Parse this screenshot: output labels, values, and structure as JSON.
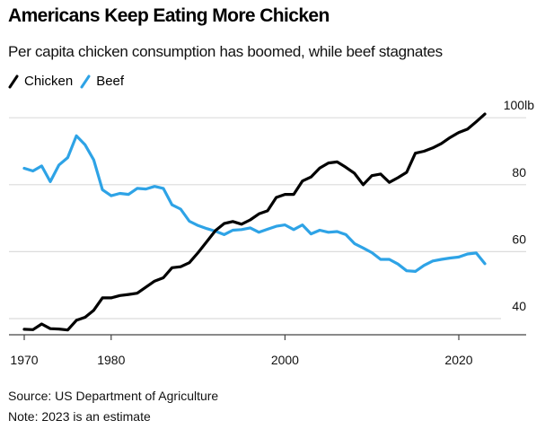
{
  "header": {
    "title": "Americans Keep Eating More Chicken",
    "subtitle": "Per capita chicken consumption has boomed, while beef stagnates"
  },
  "legend": [
    {
      "label": "Chicken",
      "color": "#000000"
    },
    {
      "label": "Beef",
      "color": "#2ea3e6"
    }
  ],
  "footer": {
    "source": "Source: US Department of Agriculture",
    "note": "Note: 2023 is an estimate"
  },
  "chart_data": {
    "type": "line",
    "title": "Americans Keep Eating More Chicken",
    "subtitle": "Per capita chicken consumption has boomed, while beef stagnates",
    "xlabel": "",
    "ylabel": "",
    "y_unit": "lb",
    "xlim": [
      1969,
      2025
    ],
    "ylim": [
      35,
      103
    ],
    "x_ticks": [
      1970,
      1980,
      2000,
      2020
    ],
    "x_tick_labels": [
      "1970",
      "1980",
      "2000",
      "2020"
    ],
    "y_ticks": [
      40,
      60,
      80,
      100
    ],
    "y_tick_labels": [
      "40",
      "60",
      "80",
      "100lb"
    ],
    "grid": true,
    "legend_position": "top-left",
    "x": [
      1970,
      1971,
      1972,
      1973,
      1974,
      1975,
      1976,
      1977,
      1978,
      1979,
      1980,
      1981,
      1982,
      1983,
      1984,
      1985,
      1986,
      1987,
      1988,
      1989,
      1990,
      1991,
      1992,
      1993,
      1994,
      1995,
      1996,
      1997,
      1998,
      1999,
      2000,
      2001,
      2002,
      2003,
      2004,
      2005,
      2006,
      2007,
      2008,
      2009,
      2010,
      2011,
      2012,
      2013,
      2014,
      2015,
      2016,
      2017,
      2018,
      2019,
      2020,
      2021,
      2022,
      2023
    ],
    "series": [
      {
        "name": "Chicken",
        "color": "#000000",
        "values": [
          36.8,
          36.7,
          38.4,
          37.0,
          36.9,
          36.6,
          39.5,
          40.4,
          42.5,
          46.2,
          46.2,
          46.9,
          47.2,
          47.6,
          49.4,
          51.2,
          52.2,
          55.2,
          55.5,
          56.7,
          59.7,
          63.0,
          66.3,
          68.4,
          69.0,
          68.2,
          69.5,
          71.3,
          72.2,
          76.2,
          77.1,
          77.1,
          81.1,
          82.3,
          85.0,
          86.5,
          86.8,
          85.2,
          83.4,
          80.0,
          82.7,
          83.2,
          80.7,
          82.1,
          83.7,
          89.4,
          90.0,
          91.0,
          92.3,
          94.1,
          95.6,
          96.6,
          98.8,
          101.1
        ]
      },
      {
        "name": "Beef",
        "color": "#2ea3e6",
        "values": [
          84.9,
          84.1,
          85.6,
          80.9,
          85.9,
          88.1,
          94.6,
          91.9,
          87.4,
          78.5,
          76.7,
          77.4,
          77.1,
          78.9,
          78.7,
          79.5,
          78.9,
          74.0,
          72.7,
          69.1,
          67.8,
          66.9,
          66.1,
          65.1,
          66.4,
          66.6,
          67.1,
          65.8,
          66.7,
          67.6,
          68.0,
          66.6,
          68.0,
          65.3,
          66.4,
          65.8,
          66.0,
          65.1,
          62.4,
          61.1,
          59.7,
          57.7,
          57.7,
          56.3,
          54.3,
          54.1,
          55.9,
          57.2,
          57.7,
          58.1,
          58.4,
          59.3,
          59.6,
          56.4
        ]
      }
    ]
  }
}
